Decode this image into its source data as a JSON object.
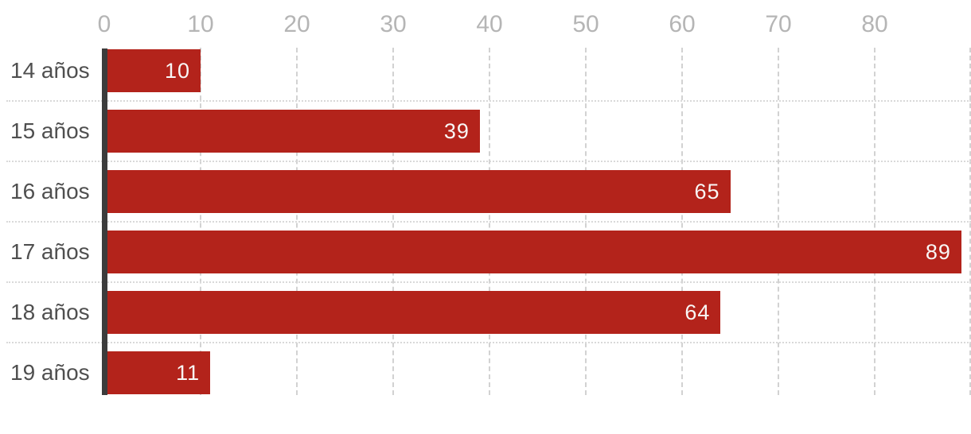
{
  "chart_data": {
    "type": "bar",
    "orientation": "horizontal",
    "title": "",
    "xlabel": "",
    "ylabel": "",
    "categories": [
      "14 años",
      "15 años",
      "16 años",
      "17 años",
      "18 años",
      "19 años"
    ],
    "values": [
      10,
      39,
      65,
      89,
      64,
      11
    ],
    "value_labels": [
      "10",
      "39",
      "65",
      "89",
      "64",
      "11"
    ],
    "xlim": [
      0,
      90
    ],
    "x_tick_labels": [
      "0",
      "10",
      "20",
      "30",
      "40",
      "50",
      "60",
      "70",
      "80"
    ],
    "x_tick_values": [
      0,
      10,
      20,
      30,
      40,
      50,
      60,
      70,
      80
    ],
    "gridline_values": [
      10,
      20,
      30,
      40,
      50,
      60,
      70,
      80,
      90
    ],
    "grid": "dashed vertical gridlines at each tick, dotted horizontal separators between rows",
    "legend": "none",
    "colors": {
      "bar": "#b3231b",
      "value_label": "#f8f6f5",
      "category_label": "#4f4f4f",
      "tick_label": "#b5b5b5",
      "gridline": "#d2d2d2",
      "row_separator": "#d9d9d9",
      "zero_baseline": "#3c3c3c",
      "background": "#ffffff"
    }
  }
}
